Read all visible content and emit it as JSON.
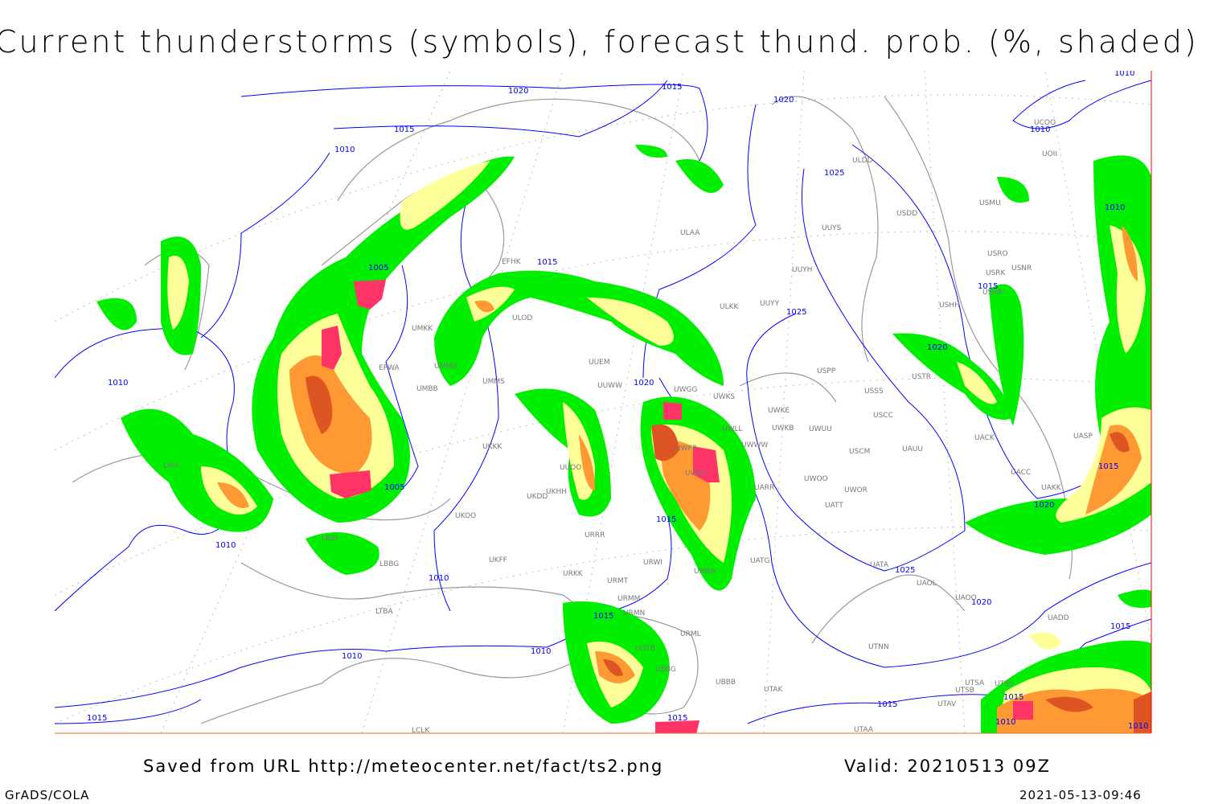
{
  "title": "Current thunderstorms (symbols), forecast thund. prob. (%, shaded)",
  "footer": {
    "saved": "Saved from URL http://meteocenter.net/fact/ts2.png",
    "valid": "Valid: 20210513 09Z",
    "software": "GrADS/COLA",
    "timestamp": "2021-05-13-09:46"
  },
  "colors": {
    "isobar": "#0000ff",
    "coastline": "#999999",
    "prob_low": "#00ee00",
    "prob_mid": "#ffff99",
    "prob_high": "#ff9933",
    "prob_very_high": "#dd5522",
    "thunderstorm_symbol": "#ff3366",
    "frame": "#ff0000"
  },
  "isobar_labels": [
    "1020",
    "1015",
    "1020",
    "1015",
    "1010",
    "1025",
    "1010",
    "1010",
    "1005",
    "1015",
    "1025",
    "1015",
    "1020",
    "1010",
    "1020",
    "1005",
    "1015",
    "1015",
    "1020",
    "1010",
    "1010",
    "1025",
    "1020",
    "1015",
    "1010",
    "1010",
    "1015",
    "1015",
    "1015",
    "1015",
    "1015",
    "1010",
    "1010",
    "1010"
  ],
  "stations": [
    "ULDD",
    "USDD",
    "UUYS",
    "UUYH",
    "ULAA",
    "ULKK",
    "UUYY",
    "USHH",
    "USRR",
    "USRK",
    "USNR",
    "USRO",
    "USMU",
    "UOII",
    "UCOO",
    "EFHK",
    "ULOD",
    "UMKK",
    "EPWA",
    "UMMG",
    "UMMS",
    "UMBB",
    "UUEM",
    "UUWW",
    "UWGG",
    "UWKS",
    "UWKE",
    "UWKB",
    "UWUU",
    "USPP",
    "USSS",
    "USCC",
    "USCM",
    "UAUU",
    "USTR",
    "UACK",
    "UACC",
    "UAKK",
    "UASP",
    "UWOO",
    "UWOR",
    "UATT",
    "UATA",
    "UAOL",
    "UAOO",
    "UADD",
    "UTNN",
    "UTSA",
    "UTSS",
    "UTSB",
    "UTAV",
    "UTAA",
    "UKKK",
    "UKHH",
    "UKDD",
    "UKOO",
    "UKFF",
    "URRR",
    "URWI",
    "URKK",
    "URMT",
    "URMM",
    "URMN",
    "URML",
    "UBBB",
    "UTAK",
    "UGTB",
    "UBBG",
    "LBSF",
    "LBBG",
    "LTBA",
    "LCLK",
    "UUOO",
    "UWLL",
    "UWWW",
    "UWPP",
    "UWSS",
    "UARR",
    "UATG",
    "URWA",
    "LIRA"
  ]
}
